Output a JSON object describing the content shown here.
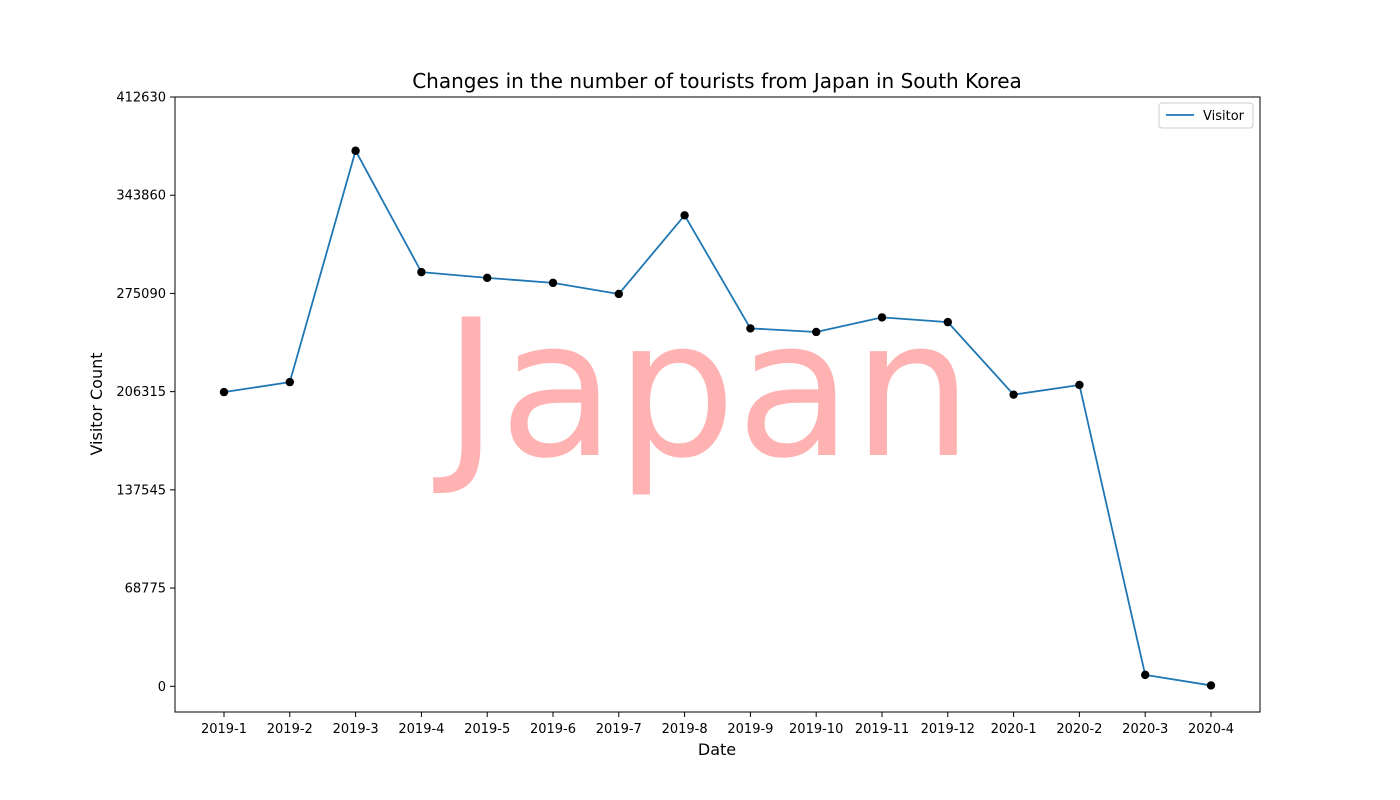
{
  "chart_data": {
    "type": "line",
    "title": "Changes in the number of tourists from Japan in South Korea",
    "xlabel": "Date",
    "ylabel": "Visitor Count",
    "watermark": "Japan",
    "categories": [
      "2019-1",
      "2019-2",
      "2019-3",
      "2019-4",
      "2019-5",
      "2019-6",
      "2019-7",
      "2019-8",
      "2019-9",
      "2019-10",
      "2019-11",
      "2019-12",
      "2020-1",
      "2020-2",
      "2020-3",
      "2020-4"
    ],
    "series": [
      {
        "name": "Visitor",
        "values": [
          206000,
          213000,
          375000,
          290000,
          286000,
          282500,
          274700,
          329800,
          250600,
          248100,
          258300,
          255000,
          204200,
          211000,
          8000,
          600
        ]
      }
    ],
    "yticks": [
      0,
      68775,
      137545,
      206315,
      275090,
      343860,
      412630
    ],
    "ylim": [
      -18000,
      412630
    ],
    "grid": false,
    "legend_position": "top-right",
    "colors": {
      "line": "#1f77b4",
      "marker": "#000000",
      "watermark": "#ff0000"
    }
  }
}
